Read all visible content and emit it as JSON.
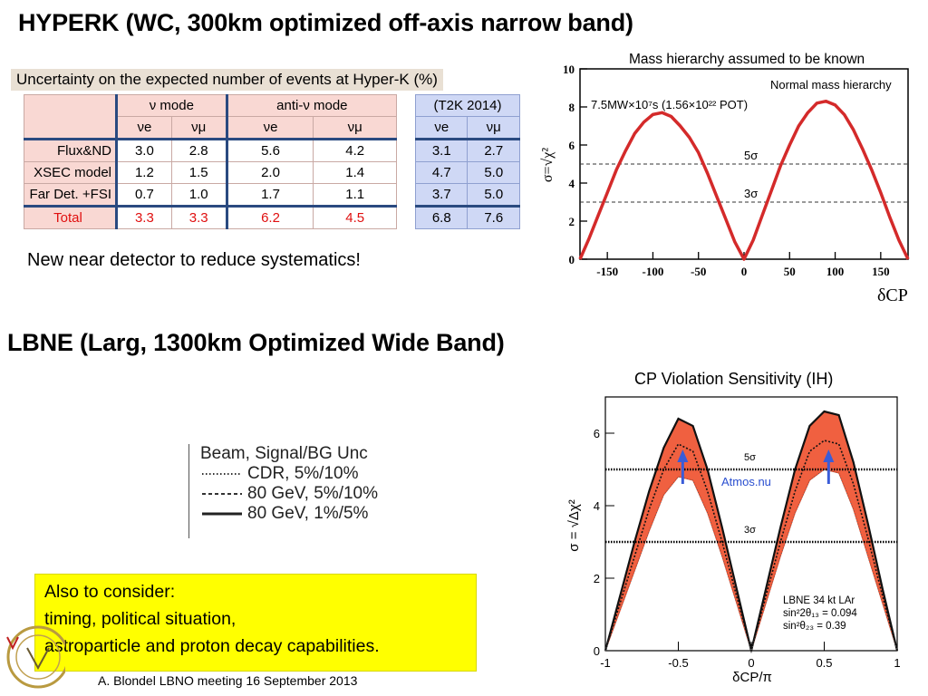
{
  "slide": {
    "title_hyperk": "HYPERK (WC, 300km optimized off-axis narrow band)",
    "title_lbne": "LBNE (Larg, 1300km Optimized Wide Band)",
    "note": "New near detector to reduce  systematics!",
    "consider": {
      "line1": "Also to consider:",
      "line2": "timing, political situation,",
      "line3": "astroparticle and proton decay  capabilities."
    },
    "footer": "A. Blondel   LBNO meeting 16 September 2013"
  },
  "table": {
    "caption": "Uncertainty on the expected number of events at Hyper-K (%)",
    "group_headers": [
      "ν mode",
      "anti-ν mode"
    ],
    "sub_headers": [
      "νe",
      "νμ",
      "νe",
      "νμ"
    ],
    "rows": [
      {
        "label": "Flux&ND",
        "values": [
          "3.0",
          "2.8",
          "5.6",
          "4.2"
        ]
      },
      {
        "label": "XSEC model",
        "values": [
          "1.2",
          "1.5",
          "2.0",
          "1.4"
        ]
      },
      {
        "label": "Far Det. +FSI",
        "values": [
          "0.7",
          "1.0",
          "1.7",
          "1.1"
        ]
      }
    ],
    "total": {
      "label": "Total",
      "values": [
        "3.3",
        "3.3",
        "6.2",
        "4.5"
      ]
    },
    "colors": {
      "header_bg": "#f9d8d3",
      "total_text": "#e01010",
      "divider": "#2a4a80"
    }
  },
  "t2k": {
    "header": "(T2K 2014)",
    "sub_headers": [
      "νe",
      "νμ"
    ],
    "rows": [
      [
        "3.1",
        "2.7"
      ],
      [
        "4.7",
        "5.0"
      ],
      [
        "3.7",
        "5.0"
      ],
      [
        "6.8",
        "7.6"
      ]
    ],
    "colors": {
      "bg": "#cfd8f5"
    }
  },
  "lbne_legend": {
    "title": "Beam, Signal/BG Unc",
    "items": [
      "CDR, 5%/10%",
      "80 GeV, 5%/10%",
      "80 GeV, 1%/5%"
    ]
  },
  "chart_data": [
    {
      "type": "line",
      "title": "Mass hierarchy assumed to be known",
      "subtitle": "Normal mass hierarchy",
      "annotation": "7.5MW×10⁷s (1.56×10²² POT)",
      "xlabel": "δCP",
      "ylabel": "σ=√χ²",
      "xlim": [
        -180,
        180
      ],
      "ylim": [
        0,
        10
      ],
      "xticks": [
        -150,
        -100,
        -50,
        0,
        50,
        100,
        150
      ],
      "yticks": [
        0,
        2,
        4,
        6,
        8,
        10
      ],
      "reference_lines": [
        {
          "label": "5σ",
          "y": 5
        },
        {
          "label": "3σ",
          "y": 3
        }
      ],
      "series": [
        {
          "color": "#d42a2a",
          "x": [
            -180,
            -170,
            -160,
            -150,
            -140,
            -130,
            -120,
            -110,
            -100,
            -90,
            -80,
            -70,
            -60,
            -50,
            -40,
            -30,
            -20,
            -10,
            0,
            10,
            20,
            30,
            40,
            50,
            60,
            70,
            80,
            90,
            100,
            110,
            120,
            130,
            140,
            150,
            160,
            170,
            180
          ],
          "y": [
            0,
            1.1,
            2.3,
            3.5,
            4.7,
            5.7,
            6.6,
            7.2,
            7.6,
            7.7,
            7.5,
            7.0,
            6.4,
            5.6,
            4.5,
            3.3,
            2.1,
            0.9,
            0,
            1.0,
            2.3,
            3.6,
            4.9,
            6.0,
            7.0,
            7.7,
            8.2,
            8.3,
            8.1,
            7.6,
            6.8,
            5.8,
            4.7,
            3.5,
            2.2,
            1.0,
            0
          ]
        }
      ]
    },
    {
      "type": "area",
      "title": "CP Violation Sensitivity (IH)",
      "xlabel": "δCP/π",
      "ylabel": "σ = √Δχ²",
      "xlim": [
        -1,
        1
      ],
      "ylim": [
        0,
        7
      ],
      "xticks": [
        "-1",
        "-0.5",
        "0",
        "0.5",
        "1"
      ],
      "yticks": [
        "0",
        "2",
        "4",
        "6"
      ],
      "reference_lines": [
        {
          "label": "5σ",
          "y": 5
        },
        {
          "label": "3σ",
          "y": 3
        }
      ],
      "arrow_label": "Atmos.nu",
      "detector_text": [
        "LBNE 34 kt LAr",
        "sin²2θ₁₃ = 0.094",
        "sin²θ₂₃ = 0.39"
      ],
      "x": [
        -1,
        -0.9,
        -0.8,
        -0.7,
        -0.6,
        -0.5,
        -0.4,
        -0.3,
        -0.2,
        -0.1,
        0,
        0.1,
        0.2,
        0.3,
        0.4,
        0.5,
        0.6,
        0.7,
        0.8,
        0.9,
        1
      ],
      "series": [
        {
          "style": "solid-upper",
          "values": [
            0,
            1.5,
            3.0,
            4.4,
            5.6,
            6.4,
            6.2,
            5.0,
            3.4,
            1.7,
            0,
            1.7,
            3.4,
            5.0,
            6.2,
            6.6,
            6.5,
            5.2,
            3.5,
            1.7,
            0
          ]
        },
        {
          "style": "dotted-mid",
          "values": [
            0,
            1.3,
            2.6,
            3.9,
            5.0,
            5.7,
            5.5,
            4.4,
            3.0,
            1.5,
            0,
            1.5,
            3.0,
            4.4,
            5.5,
            5.8,
            5.7,
            4.6,
            3.1,
            1.5,
            0
          ]
        },
        {
          "style": "band-lower",
          "values": [
            0,
            1.1,
            2.2,
            3.3,
            4.3,
            4.8,
            4.7,
            3.8,
            2.6,
            1.3,
            0,
            1.3,
            2.6,
            3.8,
            4.7,
            5.0,
            4.9,
            3.9,
            2.6,
            1.3,
            0
          ]
        }
      ],
      "colors": {
        "band": "#ee4422",
        "band_fill": "#f06040"
      }
    }
  ]
}
